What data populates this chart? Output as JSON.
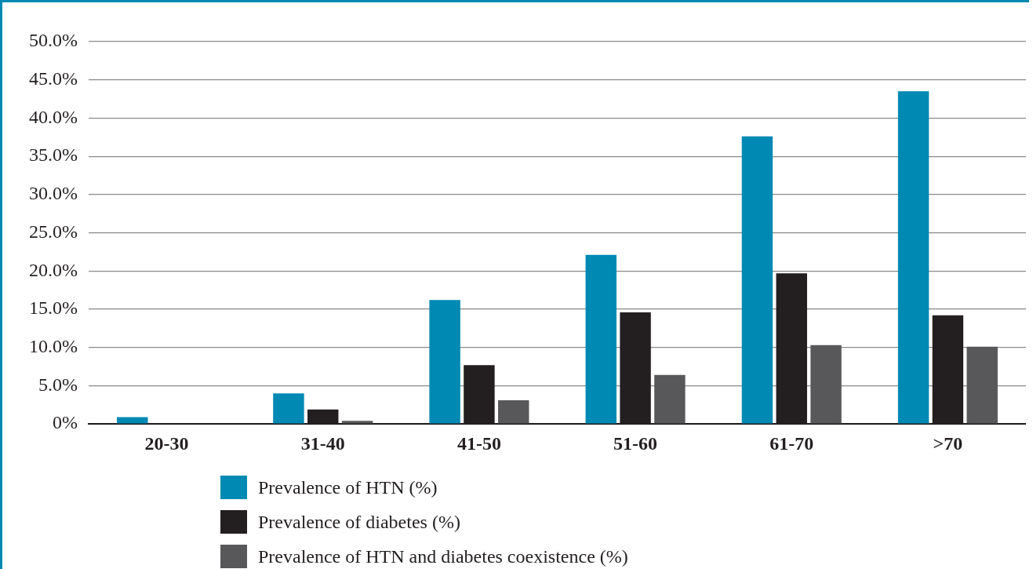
{
  "chart_data": {
    "type": "bar",
    "categories": [
      "20-30",
      "31-40",
      "41-50",
      "51-60",
      "61-70",
      ">70"
    ],
    "series": [
      {
        "name": "Prevalence of HTN (%)",
        "color": "#0089b3",
        "values": [
          0.9,
          4.0,
          16.2,
          22.1,
          37.6,
          43.5
        ]
      },
      {
        "name": "Prevalence of diabetes (%)",
        "color": "#231f20",
        "values": [
          0,
          1.9,
          7.7,
          14.6,
          19.7,
          14.2
        ]
      },
      {
        "name": "Prevalence of HTN and diabetes coexistence (%)",
        "color": "#58585a",
        "values": [
          0,
          0.4,
          3.1,
          6.4,
          10.3,
          10.1
        ]
      }
    ],
    "ylim": [
      0,
      50
    ],
    "yticks": [
      {
        "value": 0,
        "label": "0%"
      },
      {
        "value": 5,
        "label": "5.0%"
      },
      {
        "value": 10,
        "label": "10.0%"
      },
      {
        "value": 15,
        "label": "15.0%"
      },
      {
        "value": 20,
        "label": "20.0%"
      },
      {
        "value": 25,
        "label": "25.0%"
      },
      {
        "value": 30,
        "label": "30.0%"
      },
      {
        "value": 35,
        "label": "35.0%"
      },
      {
        "value": 40,
        "label": "40.0%"
      },
      {
        "value": 45,
        "label": "45.0%"
      },
      {
        "value": 50,
        "label": "50.0%"
      }
    ],
    "grid": "y",
    "legend": "bottom"
  }
}
